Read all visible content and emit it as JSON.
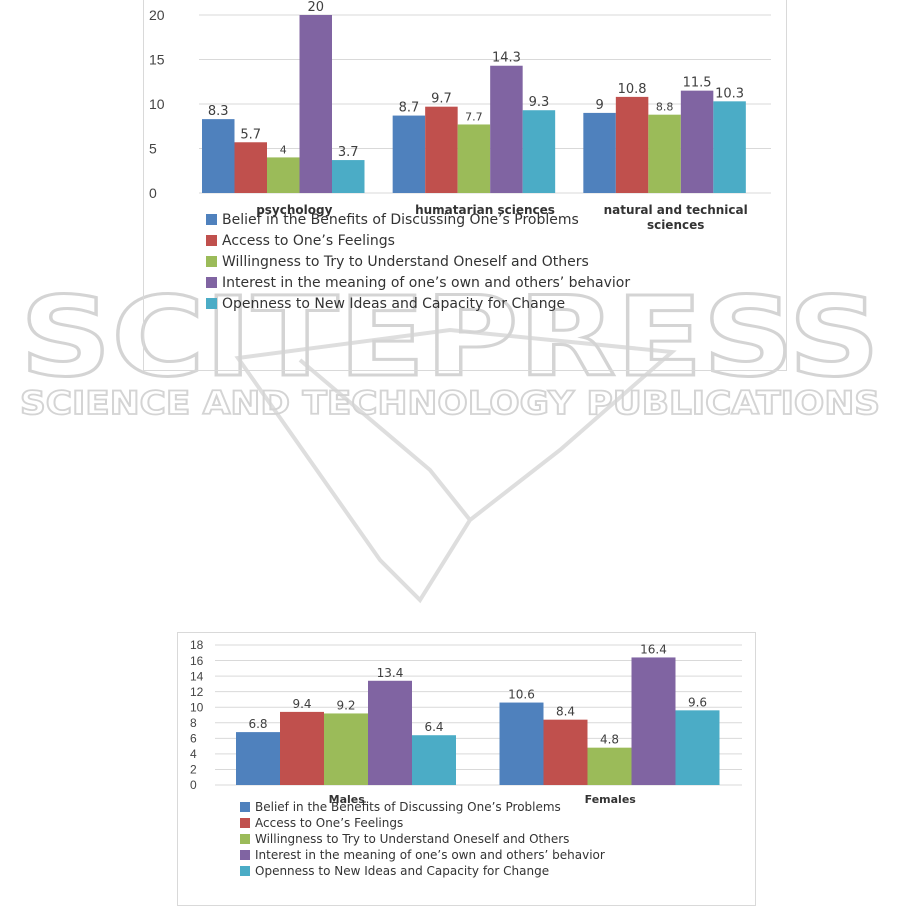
{
  "watermark": {
    "brand": "SCITEPRESS",
    "tagline": "SCIENCE AND TECHNOLOGY PUBLICATIONS"
  },
  "colors": {
    "belief": "#4F81BD",
    "access": "#C0504D",
    "willingness": "#9BBB59",
    "interest": "#8064A2",
    "openness": "#4BACC6",
    "grid": "#d9d9d9"
  },
  "chart_data": [
    {
      "type": "bar",
      "title": "",
      "xlabel": "",
      "ylabel": "",
      "ylim": [
        0,
        20
      ],
      "yticks": [
        0,
        5,
        10,
        15,
        20
      ],
      "grid": true,
      "legend": "bottom",
      "categories": [
        "psychology",
        "humatarian sciences",
        "natural and technical sciences"
      ],
      "category_lines": [
        [
          "psychology"
        ],
        [
          "humatarian sciences"
        ],
        [
          "natural and technical",
          "sciences"
        ]
      ],
      "series": [
        {
          "name": "Belief in the Benefits of Discussing One’s Problems",
          "color": "#4F81BD",
          "values": [
            8.3,
            8.7,
            9
          ],
          "labels": [
            "8.3",
            "8.7",
            "9"
          ]
        },
        {
          "name": "Access to One’s Feelings",
          "color": "#C0504D",
          "values": [
            5.7,
            9.7,
            10.8
          ],
          "labels": [
            "5.7",
            "9.7",
            "10.8"
          ]
        },
        {
          "name": "Willingness to Try to Understand Oneself and Others",
          "color": "#9BBB59",
          "values": [
            4,
            7.7,
            8.8
          ],
          "labels": [
            "4",
            "7.7",
            "8.8"
          ]
        },
        {
          "name": "Interest in the meaning of one’s own and others’ behavior",
          "color": "#8064A2",
          "values": [
            20,
            14.3,
            11.5
          ],
          "labels": [
            "20",
            "14.3",
            "11.5"
          ]
        },
        {
          "name": "Openness to New Ideas and Capacity for Change",
          "color": "#4BACC6",
          "values": [
            3.7,
            9.3,
            10.3
          ],
          "labels": [
            "3.7",
            "9.3",
            "10.3"
          ]
        }
      ]
    },
    {
      "type": "bar",
      "title": "",
      "xlabel": "",
      "ylabel": "",
      "ylim": [
        0,
        18
      ],
      "yticks": [
        0,
        2,
        4,
        6,
        8,
        10,
        12,
        14,
        16,
        18
      ],
      "grid": true,
      "legend": "bottom",
      "categories": [
        "Males",
        "Females"
      ],
      "category_lines": [
        [
          "Males"
        ],
        [
          "Females"
        ]
      ],
      "series": [
        {
          "name": "Belief in the Benefits of Discussing One’s Problems",
          "color": "#4F81BD",
          "values": [
            6.8,
            10.6
          ],
          "labels": [
            "6.8",
            "10.6"
          ]
        },
        {
          "name": "Access to One’s Feelings",
          "color": "#C0504D",
          "values": [
            9.4,
            8.4
          ],
          "labels": [
            "9.4",
            "8.4"
          ]
        },
        {
          "name": "Willingness to Try to Understand Oneself and Others",
          "color": "#9BBB59",
          "values": [
            9.2,
            4.8
          ],
          "labels": [
            "9.2",
            "4.8"
          ]
        },
        {
          "name": "Interest in the meaning of one’s own and others’ behavior",
          "color": "#8064A2",
          "values": [
            13.4,
            16.4
          ],
          "labels": [
            "13.4",
            "16.4"
          ]
        },
        {
          "name": "Openness to New Ideas and Capacity for Change",
          "color": "#4BACC6",
          "values": [
            6.4,
            9.6
          ],
          "labels": [
            "6.4",
            "9.6"
          ]
        }
      ]
    }
  ]
}
